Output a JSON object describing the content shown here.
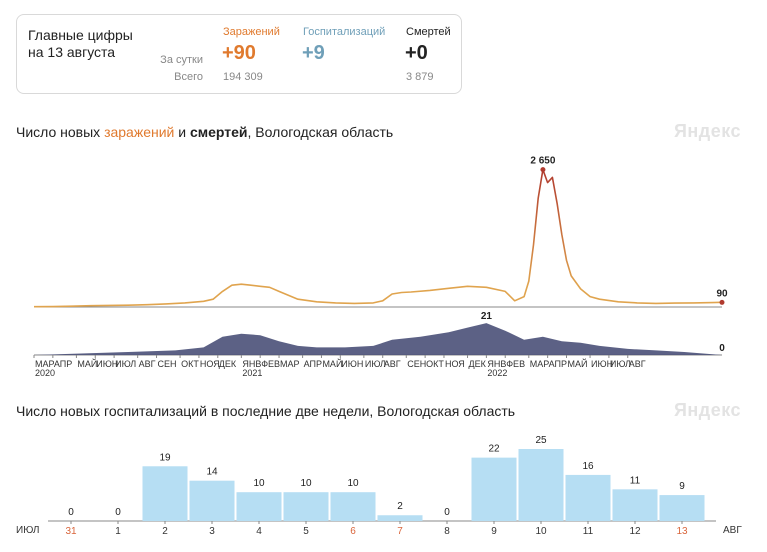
{
  "summary": {
    "title": "Главные цифры на 13 августа",
    "row_day": "За сутки",
    "row_total": "Всего",
    "columns": [
      {
        "label": "Заражений",
        "day": "+90",
        "total": "194 309",
        "color": "#e07a2e"
      },
      {
        "label": "Госпитализаций",
        "day": "+9",
        "total": "",
        "color": "#6f9fb8"
      },
      {
        "label": "Смертей",
        "day": "+0",
        "total": "3 879",
        "color": "#222222"
      }
    ]
  },
  "chart1": {
    "title_pre": "Число новых ",
    "title_infections": "заражений",
    "title_mid": " и ",
    "title_deaths": "смертей",
    "title_post": ", Вологодская область",
    "watermark": "Яндекс"
  },
  "chart2": {
    "title": "Число новых госпитализаций в последние две недели, Вологодская область",
    "watermark": "Яндекс"
  },
  "chart_data": [
    {
      "type": "line",
      "series": [
        {
          "name": "заражений",
          "color": "#e0a44e",
          "peak_color": "#b03a2e",
          "points": [
            [
              0,
              5
            ],
            [
              4,
              8
            ],
            [
              8,
              15
            ],
            [
              12,
              25
            ],
            [
              16,
              30
            ],
            [
              20,
              35
            ],
            [
              24,
              45
            ],
            [
              28,
              60
            ],
            [
              32,
              80
            ],
            [
              36,
              110
            ],
            [
              38,
              150
            ],
            [
              40,
              300
            ],
            [
              42,
              420
            ],
            [
              44,
              440
            ],
            [
              46,
              420
            ],
            [
              48,
              400
            ],
            [
              50,
              380
            ],
            [
              52,
              300
            ],
            [
              56,
              150
            ],
            [
              60,
              100
            ],
            [
              64,
              80
            ],
            [
              68,
              70
            ],
            [
              72,
              80
            ],
            [
              74,
              120
            ],
            [
              76,
              250
            ],
            [
              78,
              280
            ],
            [
              80,
              290
            ],
            [
              84,
              320
            ],
            [
              88,
              360
            ],
            [
              92,
              400
            ],
            [
              96,
              380
            ],
            [
              100,
              300
            ],
            [
              102,
              120
            ],
            [
              104,
              200
            ],
            [
              105,
              500
            ],
            [
              106,
              1200
            ],
            [
              107,
              2100
            ],
            [
              108,
              2650
            ],
            [
              109,
              2400
            ],
            [
              110,
              2500
            ],
            [
              111,
              2000
            ],
            [
              112,
              1400
            ],
            [
              113,
              900
            ],
            [
              114,
              600
            ],
            [
              116,
              350
            ],
            [
              118,
              200
            ],
            [
              120,
              150
            ],
            [
              124,
              100
            ],
            [
              128,
              80
            ],
            [
              132,
              70
            ],
            [
              136,
              75
            ],
            [
              140,
              80
            ],
            [
              144,
              85
            ],
            [
              146,
              90
            ]
          ],
          "labels": [
            {
              "text": "2 650",
              "x": 108,
              "y": 2650
            },
            {
              "text": "90",
              "x": 146,
              "y": 90
            }
          ]
        },
        {
          "name": "смертей",
          "color": "#4a5078",
          "points": [
            [
              0,
              0
            ],
            [
              10,
              1
            ],
            [
              20,
              2
            ],
            [
              30,
              3
            ],
            [
              36,
              5
            ],
            [
              40,
              12
            ],
            [
              44,
              14
            ],
            [
              48,
              13
            ],
            [
              52,
              9
            ],
            [
              56,
              6
            ],
            [
              60,
              5
            ],
            [
              66,
              5
            ],
            [
              72,
              6
            ],
            [
              76,
              10
            ],
            [
              82,
              12
            ],
            [
              88,
              15
            ],
            [
              92,
              18
            ],
            [
              96,
              21
            ],
            [
              100,
              16
            ],
            [
              104,
              10
            ],
            [
              108,
              12
            ],
            [
              112,
              9
            ],
            [
              116,
              8
            ],
            [
              120,
              6
            ],
            [
              126,
              4
            ],
            [
              132,
              3
            ],
            [
              138,
              2
            ],
            [
              142,
              1
            ],
            [
              146,
              0
            ]
          ],
          "labels": [
            {
              "text": "21",
              "x": 96,
              "y": 21
            },
            {
              "text": "0",
              "x": 146,
              "y": 0
            }
          ]
        }
      ],
      "x_ticks": [
        {
          "label": "МАР",
          "year": "2020",
          "x": 0
        },
        {
          "label": "АПР",
          "x": 4
        },
        {
          "label": "МАЙ",
          "x": 9
        },
        {
          "label": "ИЮН",
          "x": 13
        },
        {
          "label": "ИЮЛ",
          "x": 17
        },
        {
          "label": "АВГ",
          "x": 22
        },
        {
          "label": "СЕН",
          "x": 26
        },
        {
          "label": "ОКТ",
          "x": 31
        },
        {
          "label": "НОЯ",
          "x": 35
        },
        {
          "label": "ДЕК",
          "x": 39
        },
        {
          "label": "ЯНВ",
          "year": "2021",
          "x": 44
        },
        {
          "label": "ФЕВ",
          "x": 48
        },
        {
          "label": "МАР",
          "x": 52
        },
        {
          "label": "АПР",
          "x": 57
        },
        {
          "label": "МАЙ",
          "x": 61
        },
        {
          "label": "ИЮН",
          "x": 65
        },
        {
          "label": "ИЮЛ",
          "x": 70
        },
        {
          "label": "АВГ",
          "x": 74
        },
        {
          "label": "СЕН",
          "x": 79
        },
        {
          "label": "ОКТ",
          "x": 83
        },
        {
          "label": "НОЯ",
          "x": 87
        },
        {
          "label": "ДЕК",
          "x": 92
        },
        {
          "label": "ЯНВ",
          "year": "2022",
          "x": 96
        },
        {
          "label": "ФЕВ",
          "x": 100
        },
        {
          "label": "МАР",
          "x": 105
        },
        {
          "label": "АПР",
          "x": 109
        },
        {
          "label": "МАЙ",
          "x": 113
        },
        {
          "label": "ИЮН",
          "x": 118
        },
        {
          "label": "ИЮЛ",
          "x": 122
        },
        {
          "label": "АВГ",
          "x": 126
        }
      ],
      "x_range": [
        0,
        146
      ],
      "y_range_infections": [
        0,
        2700
      ],
      "y_range_deaths": [
        0,
        25
      ]
    },
    {
      "type": "bar",
      "categories": [
        "31",
        "1",
        "2",
        "3",
        "4",
        "5",
        "6",
        "7",
        "8",
        "9",
        "10",
        "11",
        "12",
        "13"
      ],
      "values": [
        0,
        0,
        19,
        14,
        10,
        10,
        10,
        2,
        0,
        22,
        25,
        16,
        11,
        9
      ],
      "weekend": [
        true,
        false,
        false,
        false,
        false,
        false,
        true,
        true,
        false,
        false,
        false,
        false,
        false,
        true
      ],
      "month_start": "ИЮЛ",
      "month_end": "АВГ",
      "color": "#b6def3",
      "ylim": [
        0,
        25
      ]
    }
  ]
}
